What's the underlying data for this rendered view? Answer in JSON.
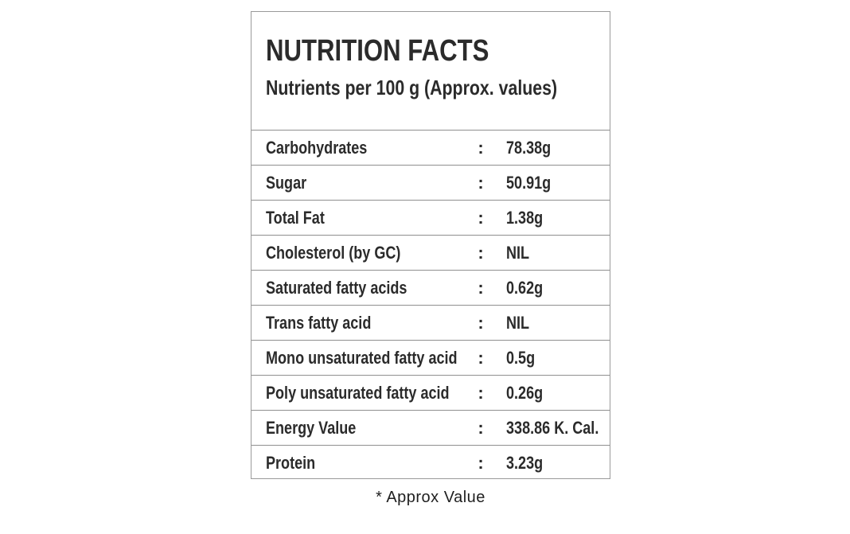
{
  "label": {
    "title": "NUTRITION FACTS",
    "subtitle": "Nutrients per 100 g (Approx. values)",
    "colon": ":",
    "rows": [
      {
        "label": "Carbohydrates",
        "value": "78.38g"
      },
      {
        "label": "Sugar",
        "value": "50.91g"
      },
      {
        "label": "Total Fat",
        "value": "1.38g"
      },
      {
        "label": "Cholesterol (by GC)",
        "value": "NIL"
      },
      {
        "label": "Saturated fatty acids",
        "value": "0.62g"
      },
      {
        "label": "Trans fatty acid",
        "value": "NIL"
      },
      {
        "label": "Mono unsaturated fatty acid",
        "value": "0.5g"
      },
      {
        "label": "Poly unsaturated fatty acid",
        "value": "0.26g"
      },
      {
        "label": "Energy Value",
        "value": "338.86 K. Cal."
      },
      {
        "label": "Protein",
        "value": "3.23g"
      }
    ],
    "footnote": "* Approx Value"
  },
  "colors": {
    "text": "#2b2b2b",
    "border": "#9a9a9a",
    "divider": "#8f8f8f",
    "background": "#ffffff"
  }
}
